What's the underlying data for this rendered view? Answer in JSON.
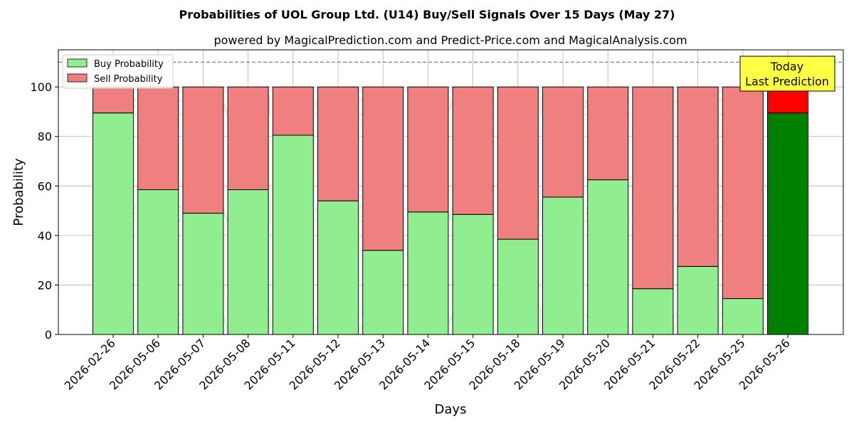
{
  "chart_data": {
    "type": "bar",
    "stacked": true,
    "title": "Probabilities of UOL Group Ltd. (U14) Buy/Sell Signals Over 15 Days (May 27)",
    "subtitle": "powered by MagicalPrediction.com and Predict-Price.com and MagicalAnalysis.com",
    "xlabel": "Days",
    "ylabel": "Probability",
    "ylim": [
      0,
      115
    ],
    "yticks": [
      0,
      20,
      40,
      60,
      80,
      100
    ],
    "grid": true,
    "legend_position": "top-left",
    "reference_line": 110,
    "categories": [
      "2026-02-26",
      "2026-05-06",
      "2026-05-07",
      "2026-05-08",
      "2026-05-11",
      "2026-05-12",
      "2026-05-13",
      "2026-05-14",
      "2026-05-15",
      "2026-05-18",
      "2026-05-19",
      "2026-05-20",
      "2026-05-21",
      "2026-05-22",
      "2026-05-25",
      "2026-05-26"
    ],
    "series": [
      {
        "name": "Buy Probability",
        "color": "#90ee90",
        "highlight_color": "#008000",
        "values": [
          89.5,
          58.5,
          49,
          58.5,
          80.5,
          54,
          34,
          49.5,
          48.5,
          38.5,
          55.5,
          62.5,
          18.5,
          27.5,
          14.5,
          89.5
        ]
      },
      {
        "name": "Sell Probability",
        "color": "#f08080",
        "highlight_color": "#ff0000",
        "values": [
          10.5,
          41.5,
          51,
          41.5,
          19.5,
          46,
          66,
          50.5,
          51.5,
          61.5,
          44.5,
          37.5,
          81.5,
          72.5,
          85.5,
          10.5
        ]
      }
    ],
    "highlight_index": 15,
    "annotation": {
      "line1": "Today",
      "line2": "Last Prediction",
      "bg_color": "#ffff44"
    },
    "watermarks": [
      "MagicalAnalysis.com",
      "MagicalPrediction.com"
    ]
  }
}
